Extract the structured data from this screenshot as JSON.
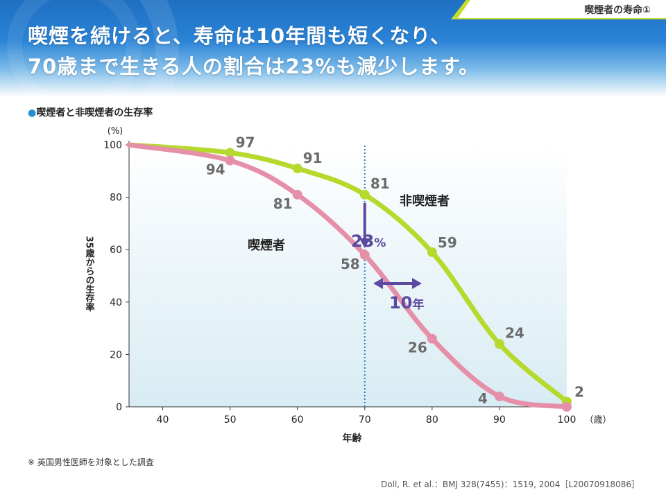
{
  "header": {
    "tag": "喫煙者の寿命①",
    "title_line1": "喫煙を続けると、寿命は10年間も短くなり、",
    "title_line2": "70歳まで生きる人の割合は23%も減少します。"
  },
  "subtitle": {
    "bullet": "●",
    "text": "喫煙者と非喫煙者の生存率"
  },
  "footnote": "※ 英国男性医師を対象とした調査",
  "source": "Doll, R. et al.：BMJ 328(7455)：1519, 2004［L20070918086］",
  "colors": {
    "smoker": "#e58fa8",
    "nonsmoker": "#b6d92d",
    "arrow": "#5b4aa0",
    "marker_line": "#1f7fc4",
    "label_gray": "#6b6b6b"
  },
  "chart_data": {
    "type": "line",
    "title": "",
    "xlabel": "年齢",
    "x_unit": "（歳）",
    "ylabel": "35歳からの生存率",
    "y_unit": "(%)",
    "xlim": [
      35,
      100
    ],
    "ylim": [
      0,
      100
    ],
    "x_ticks": [
      40,
      50,
      60,
      70,
      80,
      90,
      100
    ],
    "y_ticks": [
      0,
      20,
      40,
      60,
      80,
      100
    ],
    "reference_line_x": 70,
    "series": [
      {
        "name": "非喫煙者",
        "points": [
          {
            "x": 35,
            "y": 100
          },
          {
            "x": 50,
            "y": 97,
            "label": "97"
          },
          {
            "x": 60,
            "y": 91,
            "label": "91"
          },
          {
            "x": 70,
            "y": 81,
            "label": "81"
          },
          {
            "x": 80,
            "y": 59,
            "label": "59"
          },
          {
            "x": 90,
            "y": 24,
            "label": "24"
          },
          {
            "x": 100,
            "y": 2,
            "label": "2"
          }
        ]
      },
      {
        "name": "喫煙者",
        "points": [
          {
            "x": 35,
            "y": 100
          },
          {
            "x": 50,
            "y": 94,
            "label": "94"
          },
          {
            "x": 60,
            "y": 81,
            "label": "81"
          },
          {
            "x": 70,
            "y": 58,
            "label": "58"
          },
          {
            "x": 80,
            "y": 26,
            "label": "26"
          },
          {
            "x": 90,
            "y": 4,
            "label": "4"
          },
          {
            "x": 100,
            "y": 0
          }
        ]
      }
    ],
    "annotations": {
      "gap_23": {
        "value": "23",
        "unit": "%"
      },
      "gap_10": {
        "value": "10",
        "unit": "年"
      }
    }
  }
}
